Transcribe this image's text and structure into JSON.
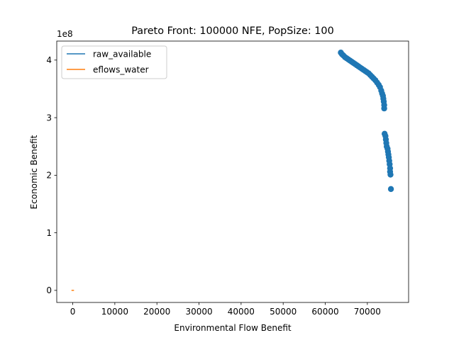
{
  "chart_data": {
    "type": "scatter",
    "title": "Pareto Front: 100000 NFE, PopSize: 100",
    "xlabel": "Environmental Flow Benefit",
    "ylabel": "Economic Benefit",
    "y_offset_label": "1e8",
    "xlim": [
      -3800,
      79800
    ],
    "ylim": [
      -0.21,
      4.33
    ],
    "xticks": [
      {
        "value": 0,
        "label": "0"
      },
      {
        "value": 10000,
        "label": "10000"
      },
      {
        "value": 20000,
        "label": "20000"
      },
      {
        "value": 30000,
        "label": "30000"
      },
      {
        "value": 40000,
        "label": "40000"
      },
      {
        "value": 50000,
        "label": "50000"
      },
      {
        "value": 60000,
        "label": "60000"
      },
      {
        "value": 70000,
        "label": "70000"
      }
    ],
    "yticks": [
      {
        "value": 0,
        "label": "0"
      },
      {
        "value": 1,
        "label": "1"
      },
      {
        "value": 2,
        "label": "2"
      },
      {
        "value": 3,
        "label": "3"
      },
      {
        "value": 4,
        "label": "4"
      }
    ],
    "grid": false,
    "legend_position": "top-left",
    "legend": [
      {
        "name": "raw_available",
        "color": "#1f77b4"
      },
      {
        "name": "eflows_water",
        "color": "#ff7f0e"
      }
    ],
    "scatter_color": "#1f77b4",
    "scatter_points": [
      [
        63700,
        4.13
      ],
      [
        64000,
        4.1
      ],
      [
        64300,
        4.08
      ],
      [
        64700,
        4.05
      ],
      [
        65100,
        4.03
      ],
      [
        65500,
        4.01
      ],
      [
        65900,
        3.99
      ],
      [
        66300,
        3.97
      ],
      [
        66700,
        3.95
      ],
      [
        67100,
        3.93
      ],
      [
        67500,
        3.91
      ],
      [
        67900,
        3.89
      ],
      [
        68300,
        3.87
      ],
      [
        68700,
        3.85
      ],
      [
        69100,
        3.83
      ],
      [
        69500,
        3.81
      ],
      [
        69900,
        3.79
      ],
      [
        70300,
        3.77
      ],
      [
        70700,
        3.74
      ],
      [
        71100,
        3.71
      ],
      [
        71500,
        3.68
      ],
      [
        71900,
        3.65
      ],
      [
        72300,
        3.61
      ],
      [
        72700,
        3.57
      ],
      [
        73000,
        3.53
      ],
      [
        73300,
        3.47
      ],
      [
        73500,
        3.42
      ],
      [
        73700,
        3.38
      ],
      [
        73800,
        3.33
      ],
      [
        73900,
        3.28
      ],
      [
        74000,
        3.22
      ],
      [
        74000,
        3.16
      ],
      [
        74100,
        2.72
      ],
      [
        74300,
        2.68
      ],
      [
        74400,
        2.62
      ],
      [
        74500,
        2.56
      ],
      [
        74600,
        2.5
      ],
      [
        74800,
        2.46
      ],
      [
        74900,
        2.41
      ],
      [
        75000,
        2.36
      ],
      [
        75100,
        2.31
      ],
      [
        75200,
        2.25
      ],
      [
        75300,
        2.19
      ],
      [
        75400,
        2.12
      ],
      [
        75400,
        2.06
      ],
      [
        75500,
        2.01
      ],
      [
        75600,
        1.76
      ]
    ],
    "series": [
      {
        "name": "raw_available",
        "color": "#1f77b4",
        "points": []
      },
      {
        "name": "eflows_water",
        "color": "#ff7f0e",
        "points": [
          [
            -300,
            0.0
          ],
          [
            300,
            0.0
          ]
        ]
      }
    ]
  }
}
